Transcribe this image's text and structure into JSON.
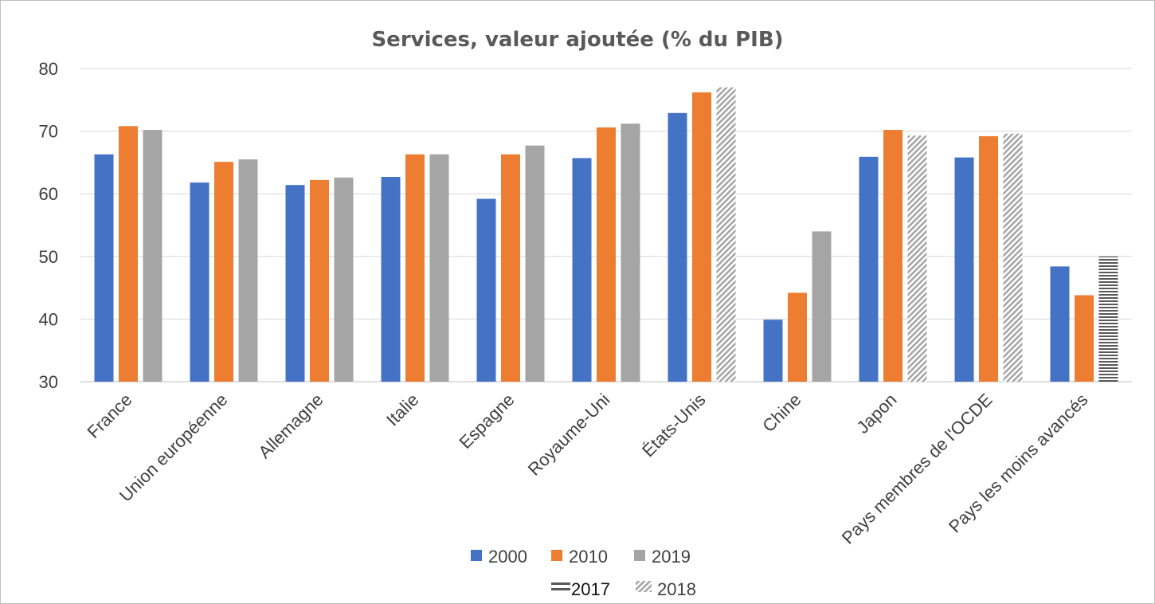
{
  "chart_data": {
    "type": "bar",
    "title": "Services, valeur ajoutée (% du PIB)",
    "xlabel": "",
    "ylabel": "",
    "ylim": [
      30,
      80
    ],
    "yticks": [
      30,
      40,
      50,
      60,
      70,
      80
    ],
    "grid": true,
    "categories": [
      "France",
      "Union européenne",
      "Allemagne",
      "Italie",
      "Espagne",
      "Royaume-Uni",
      "États-Unis",
      "Chine",
      "Japon",
      "Pays membres de l'OCDE",
      "Pays les moins avancés"
    ],
    "series": [
      {
        "name": "2000",
        "color": "#4472C4",
        "values": [
          66.3,
          61.8,
          61.4,
          62.7,
          59.2,
          65.7,
          72.9,
          39.9,
          65.9,
          65.8,
          48.4
        ]
      },
      {
        "name": "2010",
        "color": "#ED7D31",
        "values": [
          70.8,
          65.1,
          62.2,
          66.3,
          66.3,
          70.6,
          76.2,
          44.2,
          70.2,
          69.2,
          43.8
        ]
      },
      {
        "name": "2019",
        "color": "#A5A5A5",
        "pattern": "solid",
        "values": [
          70.2,
          65.5,
          62.6,
          66.3,
          67.7,
          71.2,
          null,
          54.0,
          null,
          null,
          null
        ]
      },
      {
        "name": "2017",
        "color": "#595959",
        "pattern": "horizontal-lines",
        "values": [
          null,
          null,
          null,
          null,
          null,
          null,
          null,
          null,
          null,
          null,
          50.0
        ]
      },
      {
        "name": "2018",
        "color": "#A5A5A5",
        "pattern": "diagonal-hatch",
        "values": [
          null,
          null,
          null,
          null,
          null,
          null,
          77.0,
          null,
          69.3,
          69.6,
          null
        ]
      }
    ],
    "legend": {
      "placement": "bottom",
      "rows": [
        [
          "2000",
          "2010",
          "2019"
        ],
        [
          "2017",
          "2018"
        ]
      ]
    }
  }
}
